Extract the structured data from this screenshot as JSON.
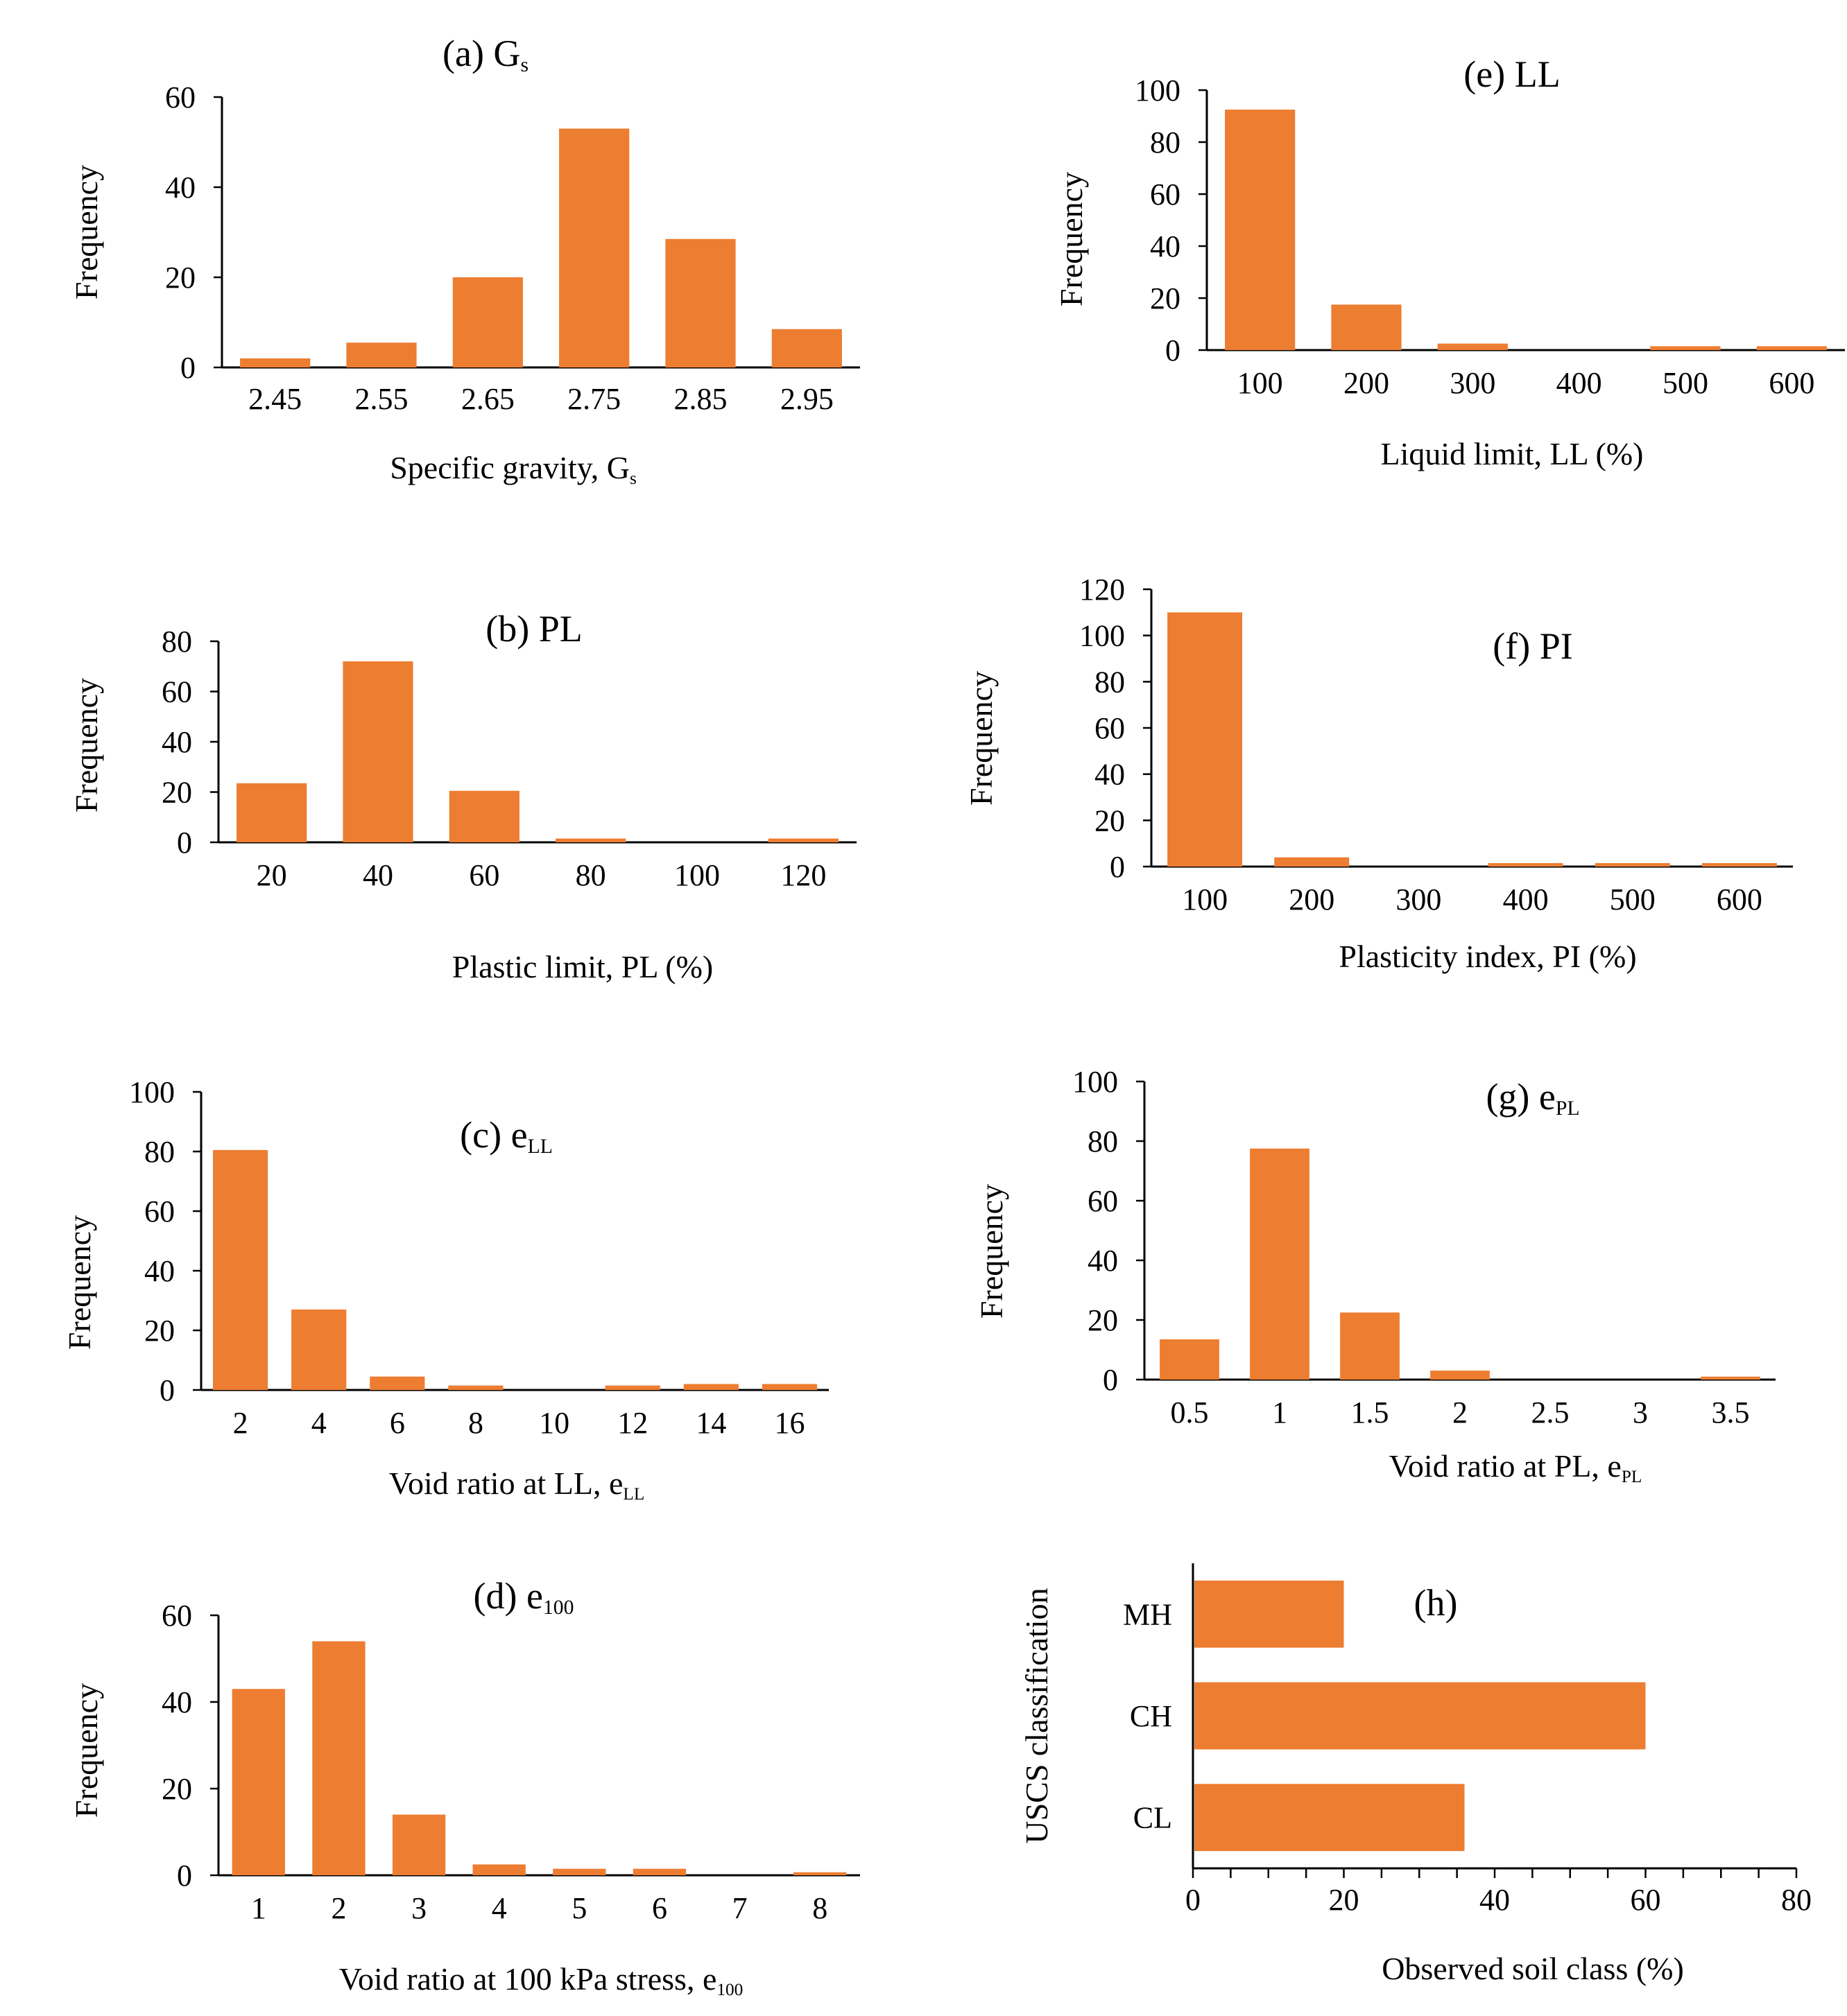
{
  "figure": {
    "bar_color": "#ED7D31",
    "axis_color": "#000000",
    "background": "#ffffff"
  },
  "chart_data": [
    {
      "id": "a",
      "type": "bar",
      "title": "(a) G",
      "title_sub": "s",
      "categories": [
        "2.45",
        "2.55",
        "2.65",
        "2.75",
        "2.85",
        "2.95"
      ],
      "values": [
        2,
        5.5,
        20,
        53,
        28.5,
        8.5
      ],
      "xlabel": "Specific gravity, G",
      "xlabel_sub": "s",
      "ylabel": "Frequency",
      "ylim": [
        0,
        60
      ],
      "yticks": [
        "0",
        "20",
        "40",
        "60"
      ]
    },
    {
      "id": "b",
      "type": "bar",
      "title": "(b) PL",
      "title_sub": "",
      "categories": [
        "20",
        "40",
        "60",
        "80",
        "100",
        "120"
      ],
      "values": [
        23.5,
        72,
        20.5,
        1.5,
        0,
        1.5
      ],
      "xlabel": "Plastic limit, PL (%)",
      "xlabel_sub": "",
      "ylabel": "Frequency",
      "ylim": [
        0,
        80
      ],
      "yticks": [
        "0",
        "20",
        "40",
        "60",
        "80"
      ]
    },
    {
      "id": "c",
      "type": "bar",
      "title": "(c) e",
      "title_sub": "LL",
      "categories": [
        "2",
        "4",
        "6",
        "8",
        "10",
        "12",
        "14",
        "16"
      ],
      "values": [
        80.5,
        27,
        4.5,
        1.5,
        0,
        1.5,
        2,
        2
      ],
      "xlabel": "Void ratio at LL, e",
      "xlabel_sub": "LL",
      "ylabel": "Frequency",
      "ylim": [
        0,
        100
      ],
      "yticks": [
        "0",
        "20",
        "40",
        "60",
        "80",
        "100"
      ]
    },
    {
      "id": "d",
      "type": "bar",
      "title": "(d) e",
      "title_sub": "100",
      "categories": [
        "1",
        "2",
        "3",
        "4",
        "5",
        "6",
        "7",
        "8"
      ],
      "values": [
        43,
        54,
        14,
        2.5,
        1.5,
        1.5,
        0,
        0.7
      ],
      "xlabel": "Void ratio at 100 kPa stress, e",
      "xlabel_sub": "100",
      "ylabel": "Frequency",
      "ylim": [
        0,
        60
      ],
      "yticks": [
        "0",
        "20",
        "40",
        "60"
      ]
    },
    {
      "id": "e",
      "type": "bar",
      "title": "(e) LL",
      "title_sub": "",
      "categories": [
        "100",
        "200",
        "300",
        "400",
        "500",
        "600"
      ],
      "values": [
        92.5,
        17.5,
        2.5,
        0,
        1.5,
        1.5
      ],
      "xlabel": "Liquid limit, LL (%)",
      "xlabel_sub": "",
      "ylabel": "Frequency",
      "ylim": [
        0,
        100
      ],
      "yticks": [
        "0",
        "20",
        "40",
        "60",
        "80",
        "100"
      ]
    },
    {
      "id": "f",
      "type": "bar",
      "title": "(f) PI",
      "title_sub": "",
      "categories": [
        "100",
        "200",
        "300",
        "400",
        "500",
        "600"
      ],
      "values": [
        110,
        4,
        0,
        1.5,
        1.5,
        1.5
      ],
      "xlabel": "Plasticity index, PI (%)",
      "xlabel_sub": "",
      "ylabel": "Frequency",
      "ylim": [
        0,
        120
      ],
      "yticks": [
        "0",
        "20",
        "40",
        "60",
        "80",
        "100",
        "120"
      ]
    },
    {
      "id": "g",
      "type": "bar",
      "title": "(g) e",
      "title_sub": "PL",
      "categories": [
        "0.5",
        "1",
        "1.5",
        "2",
        "2.5",
        "3",
        "3.5"
      ],
      "values": [
        13.5,
        77.5,
        22.5,
        3,
        0,
        0,
        1
      ],
      "xlabel": "Void ratio at PL, e",
      "xlabel_sub": "PL",
      "ylabel": "Frequency",
      "ylim": [
        0,
        100
      ],
      "yticks": [
        "0",
        "20",
        "40",
        "60",
        "80",
        "100"
      ]
    },
    {
      "id": "h",
      "type": "bar",
      "orientation": "horizontal",
      "title": "(h)",
      "title_sub": "",
      "categories": [
        "CL",
        "CH",
        "MH"
      ],
      "values": [
        36,
        60,
        20
      ],
      "xlabel": "Observed soil class (%)",
      "xlabel_sub": "",
      "ylabel": "USCS classification",
      "xlim": [
        0,
        80
      ],
      "xticks": [
        "0",
        "20",
        "40",
        "60",
        "80"
      ]
    }
  ]
}
